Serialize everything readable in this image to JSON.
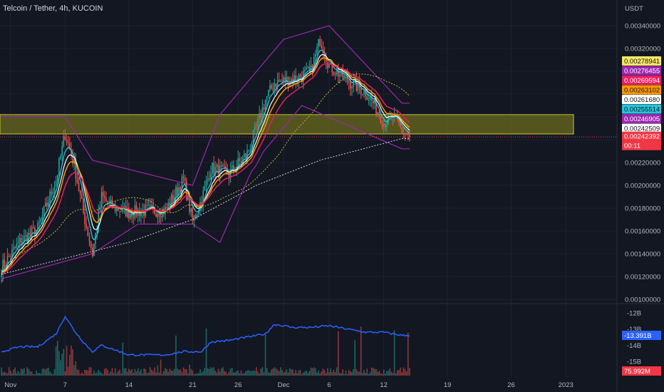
{
  "header": {
    "title": "Telcoin / Tether, 4h, KUCOIN",
    "currency": "USDT"
  },
  "colors": {
    "background": "#131722",
    "up": "#26a69a",
    "down": "#ef5350",
    "band": "#9c27b0",
    "zone": "#6b6a1e",
    "cvd": "#2962ff"
  },
  "chart_data": [
    {
      "type": "candlestick",
      "title": "Telcoin / Tether, 4h, KUCOIN",
      "y_unit": "USDT",
      "y_ticks": [
        "0.00340000",
        "0.00320000",
        "0.00300000",
        "0.00280000",
        "0.00260000",
        "0.00240000",
        "0.00220000",
        "0.00200000",
        "0.00180000",
        "0.00160000",
        "0.00140000",
        "0.00120000",
        "0.00100000"
      ],
      "x_ticks": [
        "Nov",
        "7",
        "14",
        "21",
        "26",
        "Dec",
        "6",
        "12",
        "19",
        "26",
        "2023"
      ],
      "ylim": [
        0.00093,
        0.0035
      ],
      "highlight_zone": [
        0.00245,
        0.00262
      ],
      "price_line": 0.00242392,
      "countdown": "00:11",
      "anchors_close": [
        [
          "Oct 31",
          0.00128
        ],
        [
          "Nov 2",
          0.0015
        ],
        [
          "Nov 4",
          0.00162
        ],
        [
          "Nov 6",
          0.00205
        ],
        [
          "Nov 7",
          0.00245
        ],
        [
          "Nov 8",
          0.00218
        ],
        [
          "Nov 9",
          0.00176
        ],
        [
          "Nov 10",
          0.0014
        ],
        [
          "Nov 11",
          0.0019
        ],
        [
          "Nov 12",
          0.00182
        ],
        [
          "Nov 14",
          0.00176
        ],
        [
          "Nov 16",
          0.00178
        ],
        [
          "Nov 18",
          0.00178
        ],
        [
          "Nov 20",
          0.00205
        ],
        [
          "Nov 21",
          0.00168
        ],
        [
          "Nov 22",
          0.00188
        ],
        [
          "Nov 23",
          0.00215
        ],
        [
          "Nov 25",
          0.0021
        ],
        [
          "Nov 27",
          0.00228
        ],
        [
          "Nov 28",
          0.0025
        ],
        [
          "Nov 29",
          0.00275
        ],
        [
          "Nov 30",
          0.0029
        ],
        [
          "Dec 2",
          0.00293
        ],
        [
          "Dec 4",
          0.003
        ],
        [
          "Dec 5",
          0.00328
        ],
        [
          "Dec 6",
          0.00305
        ],
        [
          "Dec 8",
          0.00292
        ],
        [
          "Dec 10",
          0.00282
        ],
        [
          "Dec 11",
          0.0027
        ],
        [
          "Dec 12",
          0.00255
        ],
        [
          "Dec 13",
          0.0026
        ],
        [
          "Dec 14",
          0.00248
        ],
        [
          "Dec 14 20:00",
          0.00242
        ]
      ],
      "bollinger_bands": {
        "upper_reference": [
          [
            "Nov 7",
            0.0026
          ],
          [
            "Nov 10",
            0.00222
          ],
          [
            "Nov 21",
            0.002
          ],
          [
            "Nov 24",
            0.00262
          ],
          [
            "Dec 1",
            0.00328
          ],
          [
            "Dec 6",
            0.0034
          ],
          [
            "Dec 14",
            0.00272
          ]
        ],
        "lower_reference": [
          [
            "Oct 31",
            0.00118
          ],
          [
            "Nov 10",
            0.0014
          ],
          [
            "Nov 15",
            0.00166
          ],
          [
            "Nov 21",
            0.00166
          ],
          [
            "Nov 24",
            0.0015
          ],
          [
            "Nov 28",
            0.00222
          ],
          [
            "Dec 3",
            0.0027
          ],
          [
            "Dec 14",
            0.00232
          ]
        ]
      },
      "moving_average_200": [
        [
          "Oct 31",
          0.00122
        ],
        [
          "Nov 14",
          0.0015
        ],
        [
          "Nov 21",
          0.0017
        ],
        [
          "Nov 28",
          0.002
        ],
        [
          "Dec 5",
          0.00222
        ],
        [
          "Dec 14",
          0.00241
        ]
      ],
      "price_labels": [
        {
          "value": "0.00278941",
          "color": "#f5e663",
          "text": "#131722"
        },
        {
          "value": "0.00276455",
          "color": "#9c27b0",
          "text": "#ffffff"
        },
        {
          "value": "0.00269594",
          "color": "#e91e63",
          "text": "#ffffff"
        },
        {
          "value": "0.00263102",
          "color": "#ff9800",
          "text": "#131722"
        },
        {
          "value": "0.00261680",
          "color": "#ffffff",
          "text": "#131722"
        },
        {
          "value": "0.00255514",
          "color": "#26c6da",
          "text": "#131722"
        },
        {
          "value": "0.00246905",
          "color": "#9c27b0",
          "text": "#ffffff"
        },
        {
          "value": "0.00242509",
          "color": "#ffffff",
          "text": "#131722"
        },
        {
          "value": "0.00242392",
          "color": "#f23645",
          "text": "#ffffff"
        }
      ]
    },
    {
      "type": "line",
      "name": "lower pane",
      "y_ticks": [
        "-12B",
        "-13B",
        "-14B",
        "-15B"
      ],
      "cvd_last": "-13.391B",
      "volume_last": "75.992M",
      "anchors": [
        [
          "Oct 31",
          -14.4
        ],
        [
          "Nov 2",
          -14.1
        ],
        [
          "Nov 4",
          -14.1
        ],
        [
          "Nov 6",
          -13.3
        ],
        [
          "Nov 7",
          -12.2
        ],
        [
          "Nov 8",
          -13.1
        ],
        [
          "Nov 9",
          -13.8
        ],
        [
          "Nov 10",
          -14.4
        ],
        [
          "Nov 11",
          -14.0
        ],
        [
          "Nov 12",
          -14.2
        ],
        [
          "Nov 14",
          -14.6
        ],
        [
          "Nov 18",
          -14.6
        ],
        [
          "Nov 20",
          -14.4
        ],
        [
          "Nov 22",
          -14.4
        ],
        [
          "Nov 23",
          -13.8
        ],
        [
          "Nov 25",
          -13.7
        ],
        [
          "Nov 27",
          -13.5
        ],
        [
          "Nov 29",
          -13.3
        ],
        [
          "Nov 30",
          -12.7
        ],
        [
          "Dec 2",
          -12.9
        ],
        [
          "Dec 4",
          -12.9
        ],
        [
          "Dec 6",
          -12.8
        ],
        [
          "Dec 8",
          -13.0
        ],
        [
          "Dec 10",
          -13.2
        ],
        [
          "Dec 12",
          -13.2
        ],
        [
          "Dec 14",
          -13.39
        ]
      ]
    }
  ]
}
